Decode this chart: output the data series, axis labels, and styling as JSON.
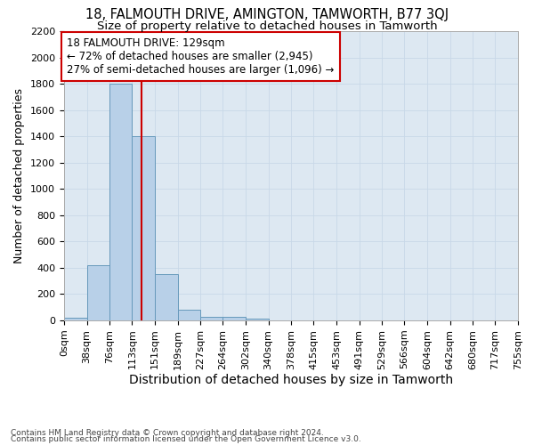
{
  "title": "18, FALMOUTH DRIVE, AMINGTON, TAMWORTH, B77 3QJ",
  "subtitle": "Size of property relative to detached houses in Tamworth",
  "xlabel": "Distribution of detached houses by size in Tamworth",
  "ylabel": "Number of detached properties",
  "bin_edges": [
    0,
    38,
    76,
    113,
    151,
    189,
    227,
    264,
    302,
    340,
    378,
    415,
    453,
    491,
    529,
    566,
    604,
    642,
    680,
    717,
    755
  ],
  "bar_heights": [
    18,
    420,
    1800,
    1400,
    350,
    80,
    25,
    25,
    15,
    0,
    0,
    0,
    0,
    0,
    0,
    0,
    0,
    0,
    0,
    0
  ],
  "bar_color": "#b8d0e8",
  "bar_edgecolor": "#6699bb",
  "bar_linewidth": 0.7,
  "vline_x": 129,
  "vline_color": "#cc0000",
  "vline_linewidth": 1.5,
  "annotation_line1": "18 FALMOUTH DRIVE: 129sqm",
  "annotation_line2": "← 72% of detached houses are smaller (2,945)",
  "annotation_line3": "27% of semi-detached houses are larger (1,096) →",
  "annotation_box_edgecolor": "#cc0000",
  "annotation_box_facecolor": "#ffffff",
  "ylim": [
    0,
    2200
  ],
  "yticks": [
    0,
    200,
    400,
    600,
    800,
    1000,
    1200,
    1400,
    1600,
    1800,
    2000,
    2200
  ],
  "grid_color": "#c8d8e8",
  "bg_color": "#dde8f2",
  "footer_line1": "Contains HM Land Registry data © Crown copyright and database right 2024.",
  "footer_line2": "Contains public sector information licensed under the Open Government Licence v3.0.",
  "title_fontsize": 10.5,
  "subtitle_fontsize": 9.5,
  "xlabel_fontsize": 10,
  "ylabel_fontsize": 9,
  "tick_fontsize": 8,
  "annotation_fontsize": 8.5,
  "footer_fontsize": 6.5
}
